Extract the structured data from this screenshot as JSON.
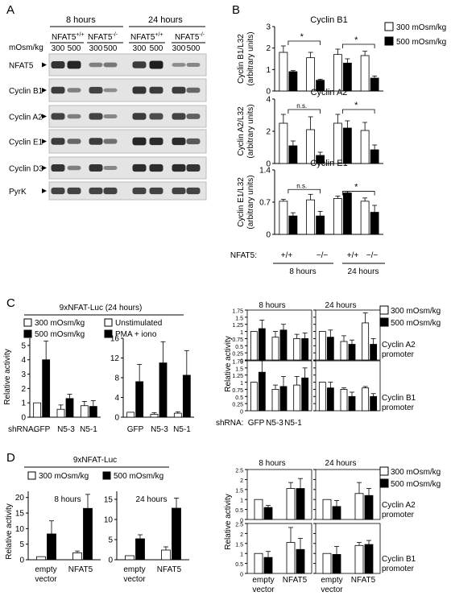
{
  "panel_letters": {
    "a": "A",
    "b": "B",
    "c": "C",
    "d": "D"
  },
  "colors": {
    "open_bar": "#ffffff",
    "filled_bar": "#000000",
    "blot_bg": "#e4e4e4",
    "band": "#1e1e1e"
  },
  "western": {
    "time_8": "8 hours",
    "time_24": "24 hours",
    "genotype_wt": "NFAT5",
    "genotype_ko": "NFAT5",
    "sup_wt": "+/+",
    "sup_ko": "-/-",
    "mosm_label": "mOsm/kg",
    "lane_300": "300",
    "lane_500": "500",
    "rows": [
      {
        "label": "NFAT5",
        "bands": [
          0.85,
          0.95,
          0.35,
          0.4,
          0.8,
          1.0,
          0.25,
          0.3
        ]
      },
      {
        "label": "Cyclin B1",
        "bands": [
          0.8,
          0.35,
          0.75,
          0.25,
          0.85,
          0.8,
          0.8,
          0.5
        ]
      },
      {
        "label": "Cyclin A2",
        "bands": [
          0.75,
          0.35,
          0.75,
          0.3,
          0.8,
          0.7,
          0.75,
          0.55
        ]
      },
      {
        "label": "Cyclin E1",
        "bands": [
          0.8,
          0.5,
          0.8,
          0.45,
          0.95,
          0.9,
          0.9,
          0.6
        ]
      },
      {
        "label": "Cyclin D3",
        "bands": [
          0.85,
          0.35,
          0.85,
          0.3,
          0.9,
          0.9,
          0.9,
          0.85
        ]
      },
      {
        "label": "PyrK",
        "bands": [
          0.75,
          0.75,
          0.75,
          0.75,
          0.75,
          0.75,
          0.75,
          0.75
        ]
      }
    ]
  },
  "panel_b": {
    "legend_300": "300 mOsm/kg",
    "legend_500": "500 mOsm/kg",
    "nfat5_label": "NFAT5:",
    "geno_labels": [
      "+/+",
      "−/−",
      "+/+",
      "−/−"
    ],
    "time_labels": [
      "8 hours",
      "24 hours"
    ],
    "sig_star": "*",
    "sig_ns": "n.s.",
    "charts": [
      {
        "title": "Cyclin B1",
        "ylabel1": "Cyclin B1/L32",
        "ylabel2": "(arbitrary units)",
        "ticks": [
          "0",
          "1",
          "2",
          "3"
        ],
        "ymax": 3,
        "values": [
          1.8,
          0.9,
          1.55,
          0.5,
          1.7,
          1.3,
          1.65,
          0.6
        ],
        "errors": [
          0.3,
          0.05,
          0.25,
          0.05,
          0.25,
          0.2,
          0.2,
          0.1
        ],
        "sig": [
          {
            "label": "*",
            "type": "star",
            "group": 0
          },
          {
            "label": "*",
            "type": "star",
            "group": 1
          }
        ]
      },
      {
        "title": "Cyclin A2",
        "ylabel1": "Cyclin A2/L32",
        "ylabel2": "(arbitrary units)",
        "ticks": [
          "0",
          "2",
          "4"
        ],
        "ymax": 4,
        "values": [
          2.5,
          1.1,
          2.1,
          0.5,
          2.5,
          2.2,
          2.05,
          0.85
        ],
        "errors": [
          0.55,
          0.3,
          0.8,
          0.2,
          0.55,
          0.45,
          0.5,
          0.3
        ],
        "sig": [
          {
            "label": "n.s.",
            "type": "ns",
            "group": 0
          },
          {
            "label": "*",
            "type": "star",
            "group": 1
          }
        ]
      },
      {
        "title": "Cyclin E1",
        "ylabel1": "Cyclin E1/L32",
        "ylabel2": "(arbitrary units)",
        "ticks": [
          "0",
          "0.7",
          "1.4"
        ],
        "ymax": 1.4,
        "values": [
          0.72,
          0.4,
          0.75,
          0.4,
          0.78,
          0.9,
          0.72,
          0.48
        ],
        "errors": [
          0.04,
          0.07,
          0.12,
          0.1,
          0.05,
          0.03,
          0.07,
          0.15
        ],
        "sig": [
          {
            "label": "n.s.",
            "type": "ns",
            "group": 0
          },
          {
            "label": "*",
            "type": "star",
            "group": 1
          }
        ]
      }
    ]
  },
  "panel_c": {
    "header": "9xNFAT-Luc (24 hours)",
    "legend1_a": "300 mOsm/kg",
    "legend1_b": "500 mOsm/kg",
    "legend2_a": "Unstimulated",
    "legend2_b": "PMA + iono",
    "ylabel": "Relative activity",
    "shrna_label": "shRNA:",
    "groups": [
      "GFP",
      "N5-3",
      "N5-1"
    ],
    "left": {
      "ticks": [
        "0",
        "1",
        "2",
        "3",
        "4",
        "5"
      ],
      "ymax": 5.5,
      "values": [
        1,
        4,
        0.55,
        1.3,
        0.8,
        0.75
      ],
      "errors": [
        0,
        1.3,
        0.3,
        0.3,
        0.3,
        0.4
      ]
    },
    "mid": {
      "ticks": [
        "0",
        "4",
        "8",
        "12",
        "16"
      ],
      "ymax": 16,
      "values": [
        1,
        7.2,
        0.6,
        11,
        0.8,
        8.5
      ],
      "errors": [
        0,
        3.5,
        0.3,
        4.3,
        0.3,
        5
      ]
    },
    "right": {
      "time_8": "8 hours",
      "time_24": "24 hours",
      "ylabel": "Relative activity",
      "legend_a": "300 mOsm/kg",
      "legend_b": "500 mOsm/kg",
      "promoter_a2": "Cyclin A2",
      "promoter_b1": "Cyclin B1",
      "promoter_word": "promoter",
      "ticks": [
        "0",
        "0.25",
        "0.5",
        "0.75",
        "1",
        "1.25",
        "1.5",
        "1.75"
      ],
      "ymax": 1.75,
      "a2_8": {
        "values": [
          1,
          1.1,
          0.8,
          1.05,
          0.75,
          0.75
        ],
        "errors": [
          0,
          0.3,
          0.2,
          0.2,
          0.15,
          0.2
        ]
      },
      "a2_24": {
        "values": [
          1,
          0.8,
          0.65,
          0.55,
          1.3,
          0.55
        ],
        "errors": [
          0,
          0.25,
          0.2,
          0.15,
          0.35,
          0.2
        ]
      },
      "b1_8": {
        "values": [
          1,
          1.35,
          0.75,
          0.85,
          0.9,
          1.15
        ],
        "errors": [
          0,
          0.4,
          0.15,
          0.35,
          0.3,
          0.35
        ]
      },
      "b1_24": {
        "values": [
          1,
          0.8,
          0.75,
          0.5,
          0.8,
          0.5
        ],
        "errors": [
          0,
          0.2,
          0.05,
          0.15,
          0.05,
          0.1
        ]
      }
    }
  },
  "panel_d": {
    "header": "9xNFAT-Luc",
    "legend_a": "300 mOsm/kg",
    "legend_b": "500 mOsm/kg",
    "ylabel": "Relative activity",
    "time_8": "8 hours",
    "time_24": "24 hours",
    "groups": [
      "empty vector",
      "NFAT5"
    ],
    "left": {
      "ticks": [
        "0",
        "5",
        "10",
        "15",
        "20"
      ],
      "ymax": 22,
      "values": [
        1,
        8.3,
        2.2,
        16.5
      ],
      "errors": [
        0,
        4.2,
        0.6,
        4.5
      ]
    },
    "mid": {
      "ticks": [
        "0",
        "5",
        "10",
        "15"
      ],
      "ymax": 17,
      "values": [
        1,
        5.2,
        2.4,
        12.8
      ],
      "errors": [
        0,
        1,
        0.8,
        2.5
      ]
    },
    "right": {
      "time_8": "8 hours",
      "time_24": "24 hours",
      "ylabel": "Relative activity",
      "legend_a": "300 mOsm/kg",
      "legend_b": "500 mOsm/kg",
      "promoter_a2": "Cyclin A2",
      "promoter_b1": "Cyclin B1",
      "promoter_word": "promoter",
      "ticks": [
        "0",
        "0.5",
        "1",
        "1.5",
        "2",
        "2.5"
      ],
      "ymax": 2.5,
      "a2_8": {
        "values": [
          1,
          0.6,
          1.55,
          1.55
        ],
        "errors": [
          0,
          0.1,
          0.3,
          0.5
        ]
      },
      "a2_24": {
        "values": [
          1,
          0.65,
          1.3,
          1.2
        ],
        "errors": [
          0,
          0.3,
          0.55,
          0.35
        ]
      },
      "b1_8": {
        "values": [
          1,
          0.8,
          1.55,
          1.2
        ],
        "errors": [
          0,
          0.3,
          0.75,
          0.55
        ]
      },
      "b1_24": {
        "values": [
          1,
          0.95,
          1.4,
          1.45
        ],
        "errors": [
          0,
          0.4,
          0.15,
          0.2
        ]
      }
    }
  }
}
